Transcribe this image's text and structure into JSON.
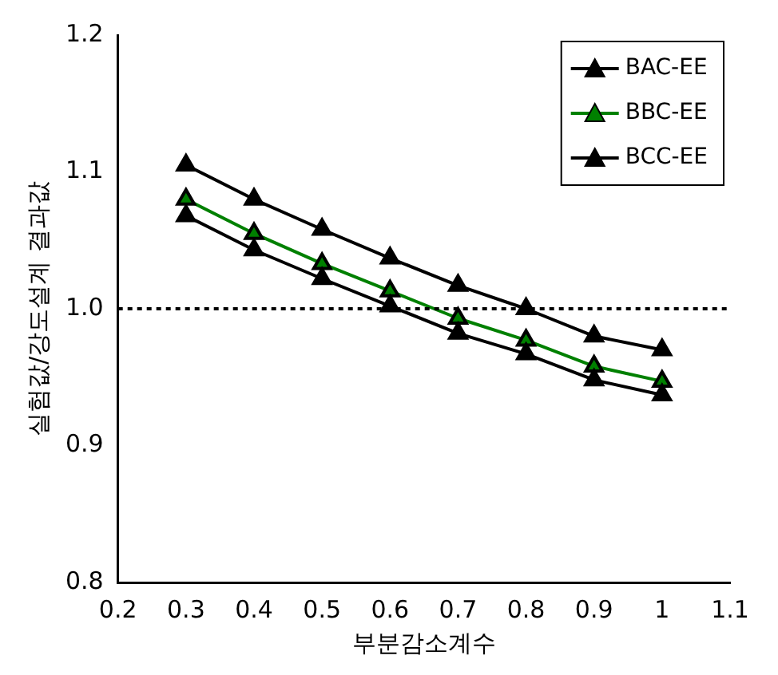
{
  "chart_data": {
    "type": "line",
    "xlabel": "부분감소계수",
    "ylabel": "실험값/강도설계 결과값",
    "x": [
      0.3,
      0.4,
      0.5,
      0.6,
      0.7,
      0.8,
      0.9,
      1
    ],
    "series": [
      {
        "name": "BAC-EE",
        "color": "#000000",
        "values": [
          1.068,
          1.043,
          1.022,
          1.002,
          0.982,
          0.967,
          0.948,
          0.937
        ]
      },
      {
        "name": "BBC-EE",
        "color": "#008000",
        "values": [
          1.08,
          1.055,
          1.033,
          1.013,
          0.993,
          0.977,
          0.958,
          0.947
        ]
      },
      {
        "name": "BCC-EE",
        "color": "#000000",
        "values": [
          1.105,
          1.08,
          1.058,
          1.037,
          1.017,
          1.0,
          0.98,
          0.97
        ]
      }
    ],
    "xlim": [
      0.2,
      1.1
    ],
    "xticks": [
      0.2,
      0.3,
      0.4,
      0.5,
      0.6,
      0.7,
      0.8,
      0.9,
      1,
      1.1
    ],
    "ylim": [
      0.8,
      1.2
    ],
    "yticks": [
      0.8,
      0.9,
      {
        "value": 1,
        "label": "1.0"
      },
      1.1,
      1.2
    ],
    "ref_lines": [
      {
        "axis": "y",
        "value": 1.0,
        "color": "#000000",
        "line_style": "dotted"
      }
    ],
    "grid": false,
    "legend": "top right",
    "marker": "triangle",
    "line_style": "solid"
  }
}
